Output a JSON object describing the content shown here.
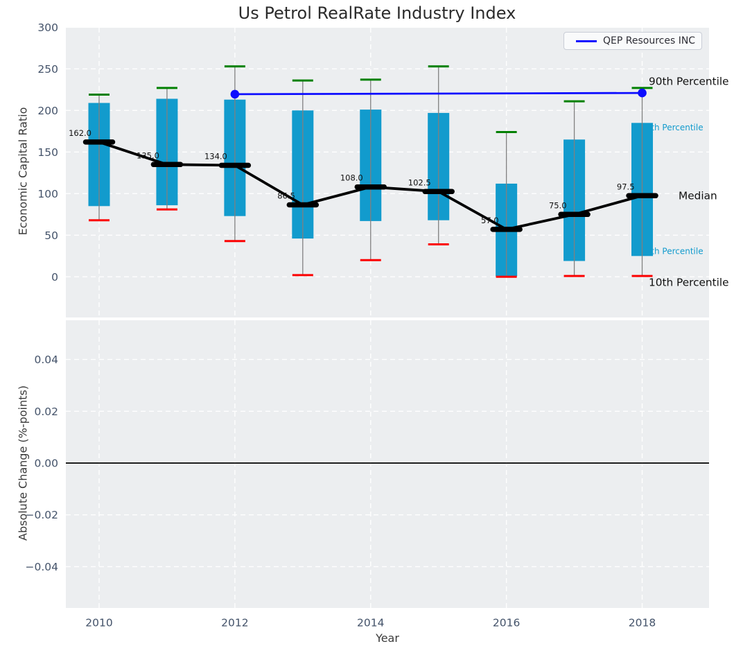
{
  "figure": {
    "title": "Us Petrol RealRate Industry Index"
  },
  "legend": {
    "label": "QEP Resources INC"
  },
  "axes": {
    "top": {
      "ylabel": "Economic Capital Ratio",
      "yticks": [
        "300",
        "250",
        "200",
        "150",
        "100",
        "50",
        "0"
      ],
      "ytick_values": [
        300,
        250,
        200,
        150,
        100,
        50,
        0
      ],
      "ylim": [
        -49,
        300
      ]
    },
    "bottom": {
      "ylabel": "Absolute Change (%-points)",
      "yticks": [
        "0.04",
        "0.02",
        "0.00",
        "−0.02",
        "−0.04"
      ],
      "ytick_values": [
        0.04,
        0.02,
        0,
        -0.02,
        -0.04
      ],
      "ylim": [
        -0.056,
        0.055
      ]
    },
    "xlabel": "Year",
    "xticks": [
      "2010",
      "2012",
      "2014",
      "2016",
      "2018"
    ],
    "xtick_values": [
      2010,
      2012,
      2014,
      2016,
      2018
    ],
    "xlim": [
      2009.5,
      2019.0
    ]
  },
  "annotations": {
    "p90": "90th Percentile",
    "p75": "75th Percentile",
    "median": "Median",
    "p25": "25th Percentile",
    "p10": "10th Percentile"
  },
  "colors": {
    "bar": "#129bcd",
    "p90_cap": "#008000",
    "p10_cap": "#fb0000",
    "median_line": "#000000",
    "qep_line": "#0d0dff",
    "whisker": "#808080",
    "panel_bg": "#eceef0",
    "grid": "#ffffff",
    "tick_text": "#44536a",
    "annotation_cyan": "#129bcd",
    "annotation_black": "#111111",
    "zero_line": "#000000"
  },
  "chart_data": {
    "type": "boxplot-timeseries",
    "title": "Us Petrol RealRate Industry Index",
    "xlabel": "Year",
    "x": [
      2010,
      2011,
      2012,
      2013,
      2014,
      2015,
      2016,
      2017,
      2018
    ],
    "series": [
      {
        "name": "90th Percentile",
        "role": "p90",
        "values": [
          219,
          227,
          253,
          236,
          237,
          253,
          174,
          211,
          227
        ]
      },
      {
        "name": "75th Percentile",
        "role": "p75",
        "values": [
          209,
          214,
          213,
          200,
          201,
          197,
          112,
          165,
          185
        ]
      },
      {
        "name": "Median",
        "role": "median",
        "values": [
          162.0,
          135.0,
          134.0,
          86.5,
          108.0,
          102.5,
          57.0,
          75.0,
          97.5
        ],
        "labels": [
          "162.0",
          "135.0",
          "134.0",
          "86.5",
          "108.0",
          "102.5",
          "57.0",
          "75.0",
          "97.5"
        ]
      },
      {
        "name": "25th Percentile",
        "role": "p25",
        "values": [
          85,
          86,
          73,
          46,
          67,
          68,
          0.5,
          19,
          25
        ]
      },
      {
        "name": "10th Percentile",
        "role": "p10",
        "values": [
          68,
          81,
          43,
          2,
          20,
          39,
          0,
          1,
          1
        ]
      },
      {
        "name": "QEP Resources INC",
        "role": "company",
        "x": [
          2012,
          2018
        ],
        "values": [
          219.5,
          221
        ]
      }
    ],
    "bottom_panel_series": []
  }
}
